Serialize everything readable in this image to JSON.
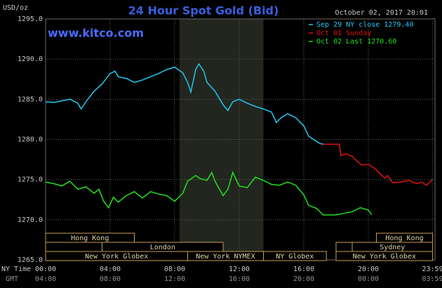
{
  "chart_data": {
    "type": "line",
    "title": "24 Hour Spot Gold (Bid)",
    "y_unit": "USD/oz",
    "timestamp": "October 02, 2017 20:01",
    "website": "www.kitco.com",
    "x_axis_label": "NY Time",
    "x2_axis_label": "GMT",
    "background": "#000000",
    "grid": true,
    "legend": "upper right",
    "xlim": [
      0,
      24
    ],
    "ylim": [
      1265,
      1295
    ],
    "yticks": [
      {
        "value": 1265,
        "label": "1265.0"
      },
      {
        "value": 1270,
        "label": "1270.0"
      },
      {
        "value": 1275,
        "label": "1275.0"
      },
      {
        "value": 1280,
        "label": "1280.0"
      },
      {
        "value": 1285,
        "label": "1285.0"
      },
      {
        "value": 1290,
        "label": "1290.0"
      },
      {
        "value": 1295,
        "label": "1295.0"
      }
    ],
    "xticks": [
      {
        "value": 0,
        "label": "00:00"
      },
      {
        "value": 4,
        "label": "04:00"
      },
      {
        "value": 8,
        "label": "08:00"
      },
      {
        "value": 12,
        "label": "12:00"
      },
      {
        "value": 16,
        "label": "16:00"
      },
      {
        "value": 20,
        "label": "20:00"
      },
      {
        "value": 23.98,
        "label": "23:59"
      }
    ],
    "x2ticks": [
      {
        "value": 0,
        "label": "04:00"
      },
      {
        "value": 4,
        "label": "08:00"
      },
      {
        "value": 8,
        "label": "12:00"
      },
      {
        "value": 12,
        "label": "16:00"
      },
      {
        "value": 16,
        "label": "20:00"
      },
      {
        "value": 20,
        "label": "00:00"
      },
      {
        "value": 23.98,
        "label": "03:59"
      }
    ],
    "shaded_span": [
      8.3,
      13.5
    ],
    "series": [
      {
        "name": "Sep 29 NY close 1279.40",
        "color": "#22c8f0",
        "x": [
          0,
          0.5,
          1,
          1.5,
          2,
          2.2,
          2.5,
          3,
          3.5,
          4,
          4.3,
          4.5,
          5,
          5.5,
          6,
          6.5,
          7,
          7.5,
          8,
          8.5,
          8.8,
          9,
          9.3,
          9.5,
          9.8,
          10,
          10.5,
          11,
          11.3,
          11.6,
          12,
          12.5,
          13,
          13.5,
          14,
          14.3,
          14.6,
          15,
          15.5,
          16,
          16.3,
          16.6,
          17,
          17.2
        ],
        "values": [
          1284.7,
          1284.6,
          1284.8,
          1285.0,
          1284.5,
          1283.8,
          1284.7,
          1286.0,
          1286.9,
          1288.2,
          1288.5,
          1287.8,
          1287.6,
          1287.1,
          1287.4,
          1287.8,
          1288.2,
          1288.7,
          1289.0,
          1288.3,
          1287.1,
          1285.9,
          1288.7,
          1289.4,
          1288.5,
          1287.1,
          1286.0,
          1284.3,
          1283.6,
          1284.7,
          1285.0,
          1284.5,
          1284.1,
          1283.8,
          1283.4,
          1282.1,
          1282.7,
          1283.2,
          1282.7,
          1281.7,
          1280.4,
          1280.0,
          1279.5,
          1279.4
        ]
      },
      {
        "name": "Oct 01 Sunday",
        "color": "#e01010",
        "x": [
          17.2,
          17.5,
          18,
          18.2,
          18.3,
          18.6,
          19,
          19.3,
          19.6,
          20,
          20.3,
          20.6,
          21,
          21.2,
          21.5,
          22,
          22.5,
          23,
          23.3,
          23.6,
          23.98
        ],
        "values": [
          1279.4,
          1279.4,
          1279.4,
          1279.4,
          1278.0,
          1278.2,
          1277.9,
          1277.3,
          1276.8,
          1276.9,
          1276.5,
          1276.0,
          1275.2,
          1275.5,
          1274.6,
          1274.7,
          1274.9,
          1274.5,
          1274.7,
          1274.3,
          1275.0
        ]
      },
      {
        "name": "Oct 02 Last 1270.60",
        "color": "#20e020",
        "x": [
          0,
          0.5,
          1,
          1.5,
          2,
          2.5,
          3,
          3.3,
          3.6,
          3.9,
          4.2,
          4.5,
          5,
          5.5,
          6,
          6.5,
          7,
          7.5,
          8,
          8.5,
          8.8,
          9.3,
          9.6,
          10,
          10.3,
          10.5,
          11,
          11.3,
          11.6,
          12,
          12.5,
          13,
          13.5,
          14,
          14.5,
          15,
          15.5,
          16,
          16.3,
          16.8,
          17,
          17.2,
          18,
          18.5,
          19,
          19.5,
          20,
          20.2
        ],
        "values": [
          1274.7,
          1274.5,
          1274.2,
          1274.8,
          1273.8,
          1274.1,
          1273.3,
          1273.8,
          1272.3,
          1271.5,
          1272.8,
          1272.2,
          1273.0,
          1273.5,
          1272.7,
          1273.5,
          1273.2,
          1273.0,
          1272.3,
          1273.3,
          1274.8,
          1275.5,
          1275.1,
          1274.9,
          1275.9,
          1274.8,
          1273.0,
          1273.8,
          1275.9,
          1274.2,
          1274.0,
          1275.3,
          1274.9,
          1274.4,
          1274.3,
          1274.7,
          1274.3,
          1273.1,
          1271.8,
          1271.4,
          1271.0,
          1270.6,
          1270.6,
          1270.8,
          1271.0,
          1271.5,
          1271.2,
          1270.6
        ]
      }
    ],
    "session_rows": [
      [
        {
          "label": "Hong Kong",
          "start": 0,
          "end": 5.5
        },
        {
          "label": "Hong Kong",
          "start": 20.5,
          "end": 23.98
        }
      ],
      [
        {
          "start": 0,
          "end": 3.5
        },
        {
          "label": "London",
          "start": 3.5,
          "end": 11
        },
        {
          "start": 18,
          "end": 19
        },
        {
          "label": "Sydney",
          "start": 19,
          "end": 23.98
        }
      ],
      [
        {
          "label": "New York Globex",
          "start": 0,
          "end": 8.8
        },
        {
          "label": "New York NYMEX",
          "start": 8.8,
          "end": 13.5
        },
        {
          "label": "NY Globex",
          "start": 13.5,
          "end": 17.4
        },
        {
          "label": "New York Globex",
          "start": 18,
          "end": 23.98
        }
      ]
    ]
  }
}
